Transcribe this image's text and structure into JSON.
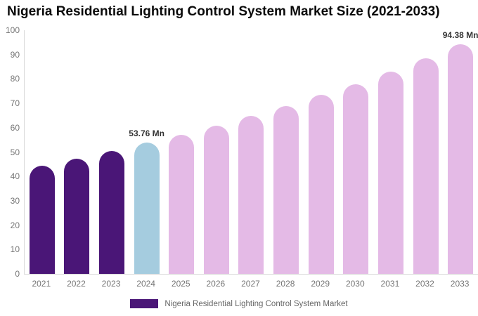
{
  "title": "Nigeria Residential Lighting Control System Market Size (2021-2033)",
  "legend": {
    "label": "Nigeria Residential Lighting Control System Market",
    "swatch_color": "#4A1677"
  },
  "colors": {
    "historical_bar": "#4A1677",
    "current_year_bar": "#A5CCDF",
    "forecast_bar": "#E4BAE6",
    "axis_line": "#D9D9D9",
    "tick_text": "#757575",
    "annotation_text": "#333333",
    "title_text": "#0A0A0A",
    "legend_text": "#666666"
  },
  "chart_data": {
    "type": "bar",
    "title": "Nigeria Residential Lighting Control System Market Size (2021-2033)",
    "unit": "Mn",
    "categories": [
      "2021",
      "2022",
      "2023",
      "2024",
      "2025",
      "2026",
      "2027",
      "2028",
      "2029",
      "2030",
      "2031",
      "2032",
      "2033"
    ],
    "values": [
      44.5,
      47.4,
      50.5,
      53.76,
      57.0,
      60.9,
      64.8,
      69.0,
      73.5,
      77.9,
      83.0,
      88.4,
      94.38
    ],
    "bar_colors": [
      "#4A1677",
      "#4A1677",
      "#4A1677",
      "#A5CCDF",
      "#E4BAE6",
      "#E4BAE6",
      "#E4BAE6",
      "#E4BAE6",
      "#E4BAE6",
      "#E4BAE6",
      "#E4BAE6",
      "#E4BAE6",
      "#E4BAE6"
    ],
    "annotations": [
      {
        "category": "2024",
        "text": "53.76 Mn"
      },
      {
        "category": "2033",
        "text": "94.38 Mn"
      }
    ],
    "xlabel": "",
    "ylabel": "",
    "ylim": [
      0,
      100
    ],
    "yticks": [
      0,
      10,
      20,
      30,
      40,
      50,
      60,
      70,
      80,
      90,
      100
    ],
    "grid": false,
    "legend_position": "bottom",
    "series_name": "Nigeria Residential Lighting Control System Market"
  }
}
